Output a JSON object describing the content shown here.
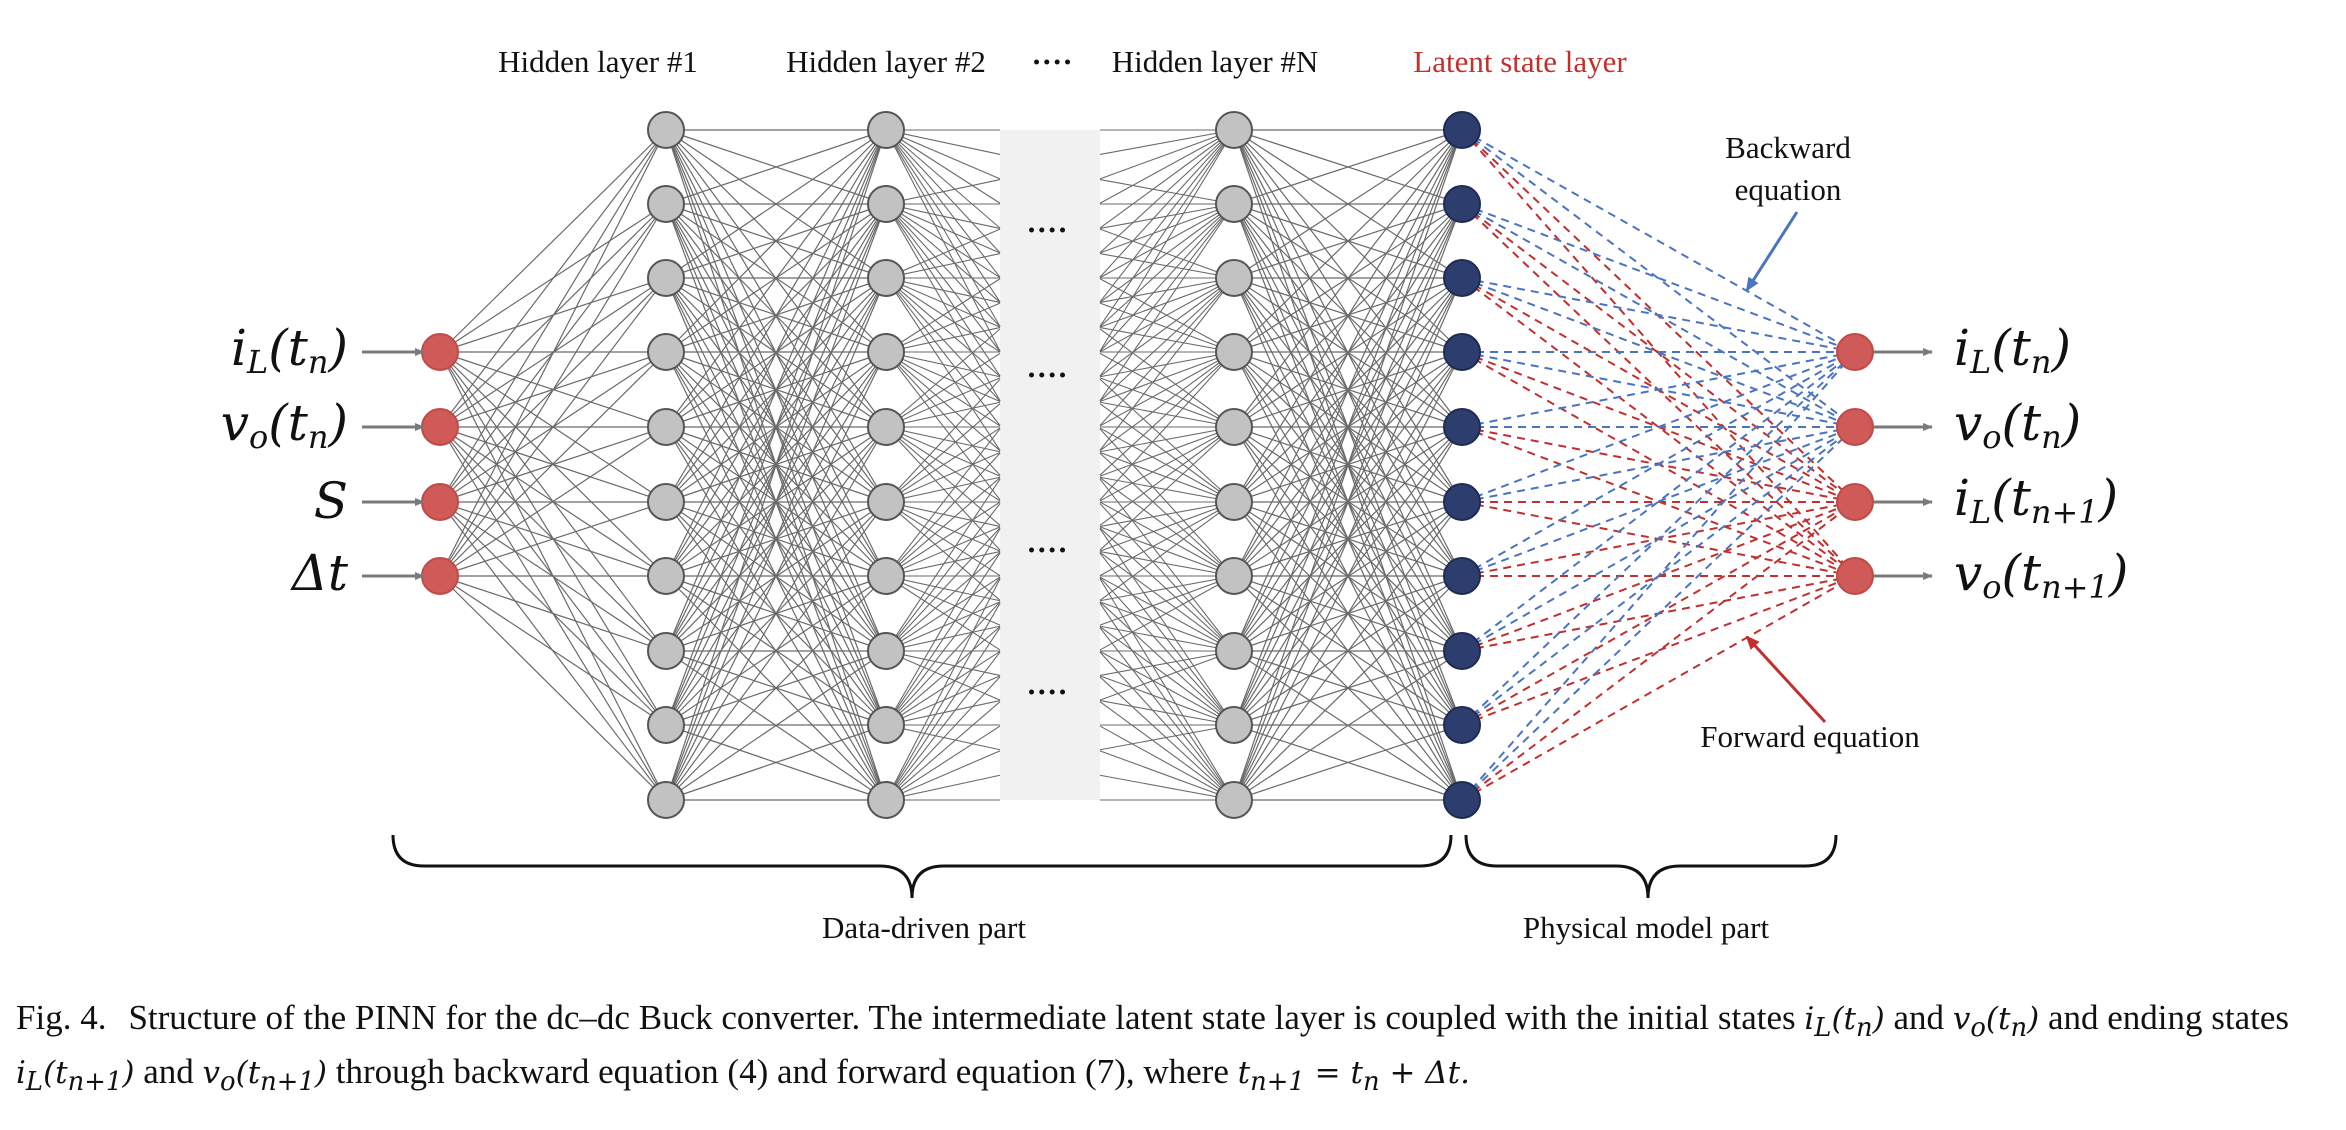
{
  "headers": {
    "hidden1": "Hidden layer #1",
    "hidden2": "Hidden layer #2",
    "dots": "····",
    "hiddenN": "Hidden layer #N",
    "latent": "Latent state layer"
  },
  "inputs": [
    "i_L(t_n)",
    "v_o(t_n)",
    "S",
    "Δt"
  ],
  "outputs": [
    "i_L(t_n)",
    "v_o(t_n)",
    "i_L(t_{n+1})",
    "v_o(t_{n+1})"
  ],
  "ellipsis_marks": [
    "····",
    "····",
    "····",
    "····"
  ],
  "annotations": {
    "backward_line1": "Backward",
    "backward_line2": "equation",
    "forward": "Forward equation"
  },
  "braces": {
    "data_driven": "Data-driven part",
    "physical": "Physical model part"
  },
  "caption": {
    "fig": "Fig. 4.",
    "s1": "Structure of the PINN for the dc–dc Buck converter. The intermediate latent state layer is coupled with the initial states",
    "iL_tn": "i_L(t_n)",
    "and1": "and",
    "vo_tn": "v_o(t_n)",
    "ending": "and ending states",
    "iL_tn1": "i_L(t_{n+1})",
    "and2": "and",
    "vo_tn1": "v_o(t_{n+1})",
    "s2": "through backward equation (4) and forward equation (7), where",
    "eq": "t_{n+1} = t_n + Δt."
  },
  "colors": {
    "input_node": "#d05a58",
    "hidden_node": "#c2c2c2",
    "latent_node": "#2d3e6e",
    "backward": "#4a74c0",
    "forward": "#c0302e",
    "latent_label": "#c0302e",
    "edge": "#6a6a6a"
  }
}
